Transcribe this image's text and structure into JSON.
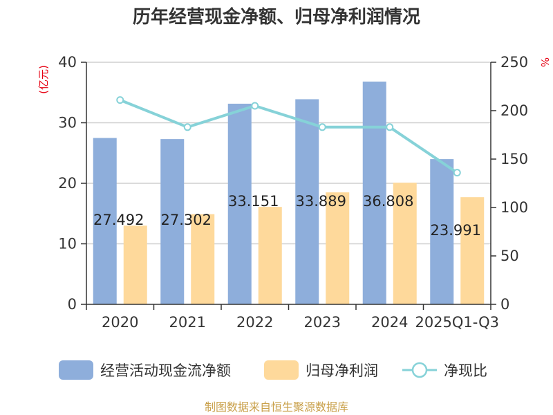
{
  "chart_data": {
    "type": "bar",
    "title": "历年经营现金净额、归母净利润情况",
    "categories": [
      "2020",
      "2021",
      "2022",
      "2023",
      "2024",
      "2025Q1-Q3"
    ],
    "series": [
      {
        "name": "经营活动现金流净额",
        "kind": "bar",
        "axis": "left",
        "color": "#8eaedb",
        "values": [
          27.492,
          27.302,
          33.151,
          33.889,
          36.808,
          23.991
        ],
        "labels": [
          "27.492",
          "27.302",
          "33.151",
          "33.889",
          "36.808",
          "23.991"
        ]
      },
      {
        "name": "归母净利润",
        "kind": "bar",
        "axis": "left",
        "color": "#fed99b",
        "values": [
          13.0,
          14.9,
          16.1,
          18.5,
          20.1,
          17.7
        ]
      },
      {
        "name": "净现比",
        "kind": "line",
        "axis": "right",
        "color": "#86d2d8",
        "values": [
          211,
          183,
          205,
          183,
          183,
          136
        ]
      }
    ],
    "y_left": {
      "unit": "(亿元)",
      "ylim": [
        0,
        40
      ],
      "ticks": [
        "0",
        "10",
        "20",
        "30",
        "40"
      ]
    },
    "y_right": {
      "unit": "%",
      "ylim": [
        0,
        250
      ],
      "ticks": [
        "0",
        "50",
        "100",
        "150",
        "200",
        "250"
      ]
    },
    "grid": true,
    "legend": "bottom",
    "source": "制图数据来自恒生聚源数据库"
  }
}
